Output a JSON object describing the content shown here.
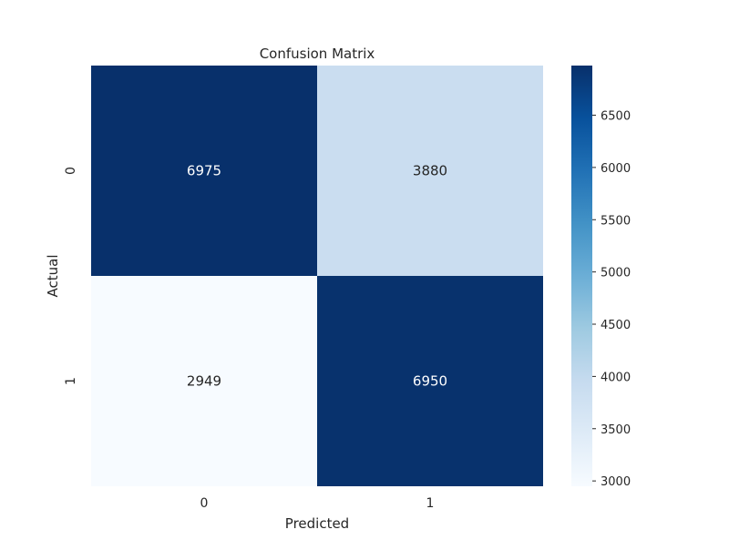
{
  "chart_data": {
    "type": "heatmap",
    "title": "Confusion Matrix",
    "xlabel": "Predicted",
    "ylabel": "Actual",
    "x_categories": [
      "0",
      "1"
    ],
    "y_categories": [
      "0",
      "1"
    ],
    "values": [
      [
        6975,
        3880
      ],
      [
        2949,
        6950
      ]
    ],
    "colormap": "Blues",
    "color_range": [
      2949,
      6975
    ],
    "colorbar_ticks": [
      3000,
      3500,
      4000,
      4500,
      5000,
      5500,
      6000,
      6500
    ],
    "colorbar_tick_labels": [
      "3000",
      "3500",
      "4000",
      "4500",
      "5000",
      "5500",
      "6000",
      "6500"
    ],
    "grid": false,
    "colorbar": "right"
  }
}
